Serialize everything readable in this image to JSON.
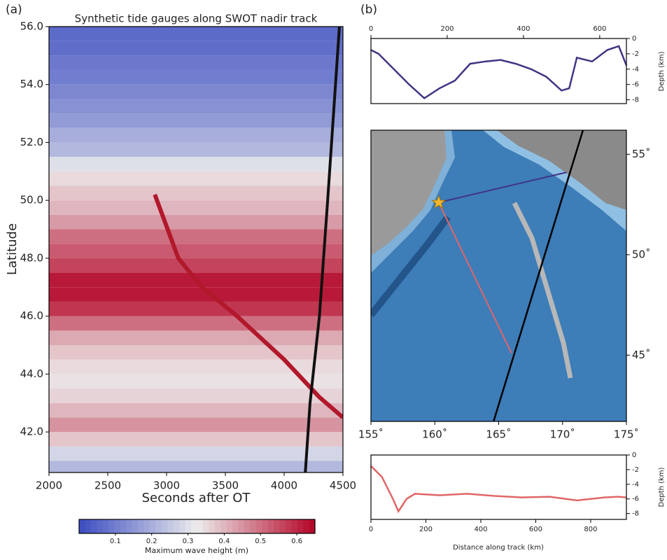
{
  "chart_data": [
    {
      "type": "gauges",
      "label": "(a)",
      "title": "Synthetic tide gauges along SWOT nadir track",
      "xlabel": "Seconds after OT",
      "ylabel": "Latitude",
      "xlim": [
        2000,
        4500
      ],
      "xticks": [
        2000,
        2500,
        3000,
        3500,
        4000,
        4500
      ],
      "ylim": [
        40.6,
        56.0
      ],
      "yticks": [
        {
          "value": 42,
          "label": "42.0"
        },
        {
          "value": 44,
          "label": "44.0"
        },
        {
          "value": 46,
          "label": "46.0"
        },
        {
          "value": 48,
          "label": "48.0"
        },
        {
          "value": 50,
          "label": "50.0"
        },
        {
          "value": 52,
          "label": "52.0"
        },
        {
          "value": 54,
          "label": "54.0"
        },
        {
          "value": 56,
          "label": "56.0"
        }
      ],
      "y": [
        40.75,
        41.25,
        41.75,
        42.25,
        42.75,
        43.25,
        43.75,
        44.25,
        44.75,
        45.25,
        45.75,
        46.25,
        46.75,
        47.25,
        47.75,
        48.25,
        48.75,
        49.25,
        49.75,
        50.25,
        50.75,
        51.25,
        51.75,
        52.25,
        52.75,
        53.25,
        53.75,
        54.25,
        54.75,
        55.25,
        55.75
      ],
      "values": [
        0.22,
        0.28,
        0.38,
        0.45,
        0.4,
        0.36,
        0.34,
        0.35,
        0.38,
        0.42,
        0.5,
        0.58,
        0.62,
        0.62,
        0.56,
        0.53,
        0.5,
        0.44,
        0.4,
        0.38,
        0.35,
        0.3,
        0.22,
        0.2,
        0.16,
        0.14,
        0.12,
        0.1,
        0.09,
        0.07,
        0.06
      ],
      "track": {
        "color": "#111111",
        "x": [
          4180,
          4220,
          4300,
          4370,
          4420,
          4470
        ],
        "y": [
          40.6,
          43,
          46,
          50,
          53,
          56
        ]
      },
      "front": {
        "color": "#b2182b",
        "x": [
          2900,
          3100,
          3300,
          3600,
          4000,
          4300,
          4500
        ],
        "y": [
          50.2,
          48,
          47,
          46,
          44.5,
          43.2,
          42.5
        ]
      },
      "colorbar": {
        "label": "Maximum wave height (m)",
        "lim": [
          0,
          0.65
        ],
        "ticks": [
          0.1,
          0.2,
          0.3,
          0.4,
          0.5,
          0.6
        ]
      }
    },
    {
      "type": "line",
      "label": "(b)",
      "ylabel": "Depth (km)",
      "color": "#3f3585",
      "xlim": [
        0,
        670
      ],
      "xticks": [
        0,
        200,
        400,
        600
      ],
      "ylim": [
        -8.5,
        0
      ],
      "yticks": [
        0,
        -2,
        -4,
        -6,
        -8
      ],
      "x": [
        0,
        20,
        60,
        100,
        140,
        180,
        220,
        260,
        300,
        340,
        380,
        420,
        460,
        500,
        520,
        540,
        580,
        620,
        650,
        670
      ],
      "values": [
        -1.5,
        -2,
        -4,
        -6,
        -7.8,
        -6.5,
        -5.5,
        -3.3,
        -3,
        -2.8,
        -3.3,
        -4,
        -5,
        -6.8,
        -6.5,
        -2.5,
        -3,
        -1.5,
        -1,
        -3.5
      ]
    },
    {
      "type": "map",
      "xlim": [
        155,
        175
      ],
      "ylim": [
        41.7,
        56.2
      ],
      "xticks": [
        {
          "value": 155,
          "label": "155˚"
        },
        {
          "value": 160,
          "label": "160˚"
        },
        {
          "value": 165,
          "label": "165˚"
        },
        {
          "value": 170,
          "label": "170˚"
        },
        {
          "value": 175,
          "label": "175˚"
        }
      ],
      "yticks": [
        {
          "value": 45,
          "label": "45˚"
        },
        {
          "value": 50,
          "label": "50˚"
        },
        {
          "value": 55,
          "label": "55˚"
        }
      ],
      "tracks": [
        {
          "color": "#3f3585",
          "x": [
            160.3,
            170.3
          ],
          "y": [
            52.6,
            54.1
          ]
        },
        {
          "color": "#e06666",
          "x": [
            160.3,
            166
          ],
          "y": [
            52.6,
            45.1
          ]
        },
        {
          "color": "#000000",
          "x": [
            164.6,
            171.6
          ],
          "y": [
            41.7,
            56.2
          ]
        }
      ],
      "star": {
        "color": "#f5b82e",
        "x": 160.3,
        "y": 52.6
      }
    },
    {
      "type": "line",
      "xlabel": "Distance along track (km)",
      "ylabel": "Depth (km)",
      "color": "#e06666",
      "xlim": [
        0,
        930
      ],
      "xticks": [
        0,
        200,
        400,
        600,
        800
      ],
      "ylim": [
        -8.8,
        0
      ],
      "yticks": [
        0,
        -2,
        -4,
        -6,
        -8
      ],
      "x": [
        0,
        40,
        80,
        100,
        130,
        160,
        250,
        350,
        450,
        550,
        650,
        750,
        850,
        900,
        930
      ],
      "values": [
        -1.5,
        -3,
        -6,
        -7.7,
        -6,
        -5.3,
        -5.5,
        -5.3,
        -5.6,
        -5.8,
        -5.7,
        -6.2,
        -5.8,
        -5.7,
        -5.8
      ]
    }
  ]
}
